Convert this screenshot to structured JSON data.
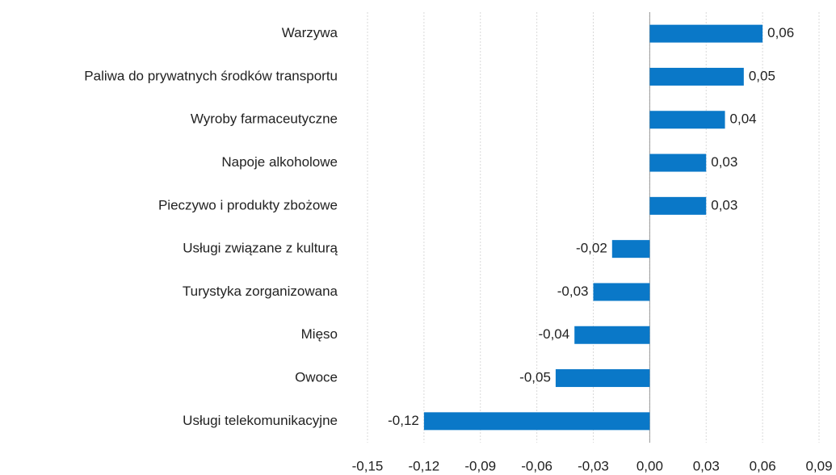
{
  "chart_data": {
    "type": "bar",
    "orientation": "horizontal",
    "categories": [
      "Warzywa",
      "Paliwa do prywatnych środków transportu",
      "Wyroby farmaceutyczne",
      "Napoje alkoholowe",
      "Pieczywo i produkty zbożowe",
      "Usługi związane z kulturą",
      "Turystyka zorganizowana",
      "Mięso",
      "Owoce",
      "Usługi telekomunikacyjne"
    ],
    "values": [
      0.06,
      0.05,
      0.04,
      0.03,
      0.03,
      -0.02,
      -0.03,
      -0.04,
      -0.05,
      -0.12
    ],
    "value_labels": [
      "0,06",
      "0,05",
      "0,04",
      "0,03",
      "0,03",
      "-0,02",
      "-0,03",
      "-0,04",
      "-0,05",
      "-0,12"
    ],
    "color": "#0a78c8",
    "xlim": [
      -0.15,
      0.09
    ],
    "xticks": [
      {
        "value": -0.15,
        "label": "-0,15"
      },
      {
        "value": -0.12,
        "label": "-0,12"
      },
      {
        "value": -0.09,
        "label": "-0,09"
      },
      {
        "value": -0.06,
        "label": "-0,06"
      },
      {
        "value": -0.03,
        "label": "-0,03"
      },
      {
        "value": 0,
        "label": "0,00"
      },
      {
        "value": 0.03,
        "label": "0,03"
      },
      {
        "value": 0.06,
        "label": "0,06"
      },
      {
        "value": 0.09,
        "label": "0,09"
      }
    ],
    "grid": true
  }
}
